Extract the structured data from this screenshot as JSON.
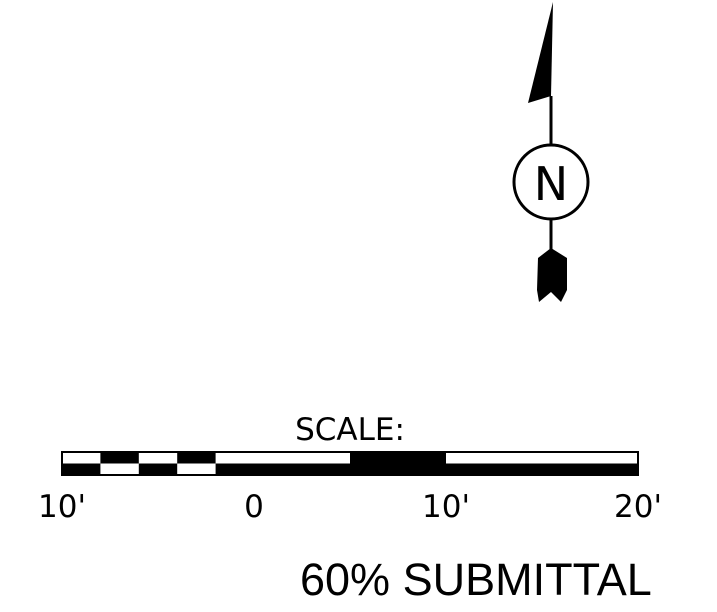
{
  "north_arrow": {
    "letter": "N",
    "icon": "north-arrow-icon"
  },
  "scale_bar": {
    "title": "SCALE:",
    "unit": "feet",
    "labels": [
      "10'",
      "0",
      "10'",
      "20'"
    ],
    "values": [
      -10,
      0,
      10,
      20
    ],
    "subdivisions_left": 5
  },
  "stamp": {
    "text": "60% SUBMITTAL"
  }
}
